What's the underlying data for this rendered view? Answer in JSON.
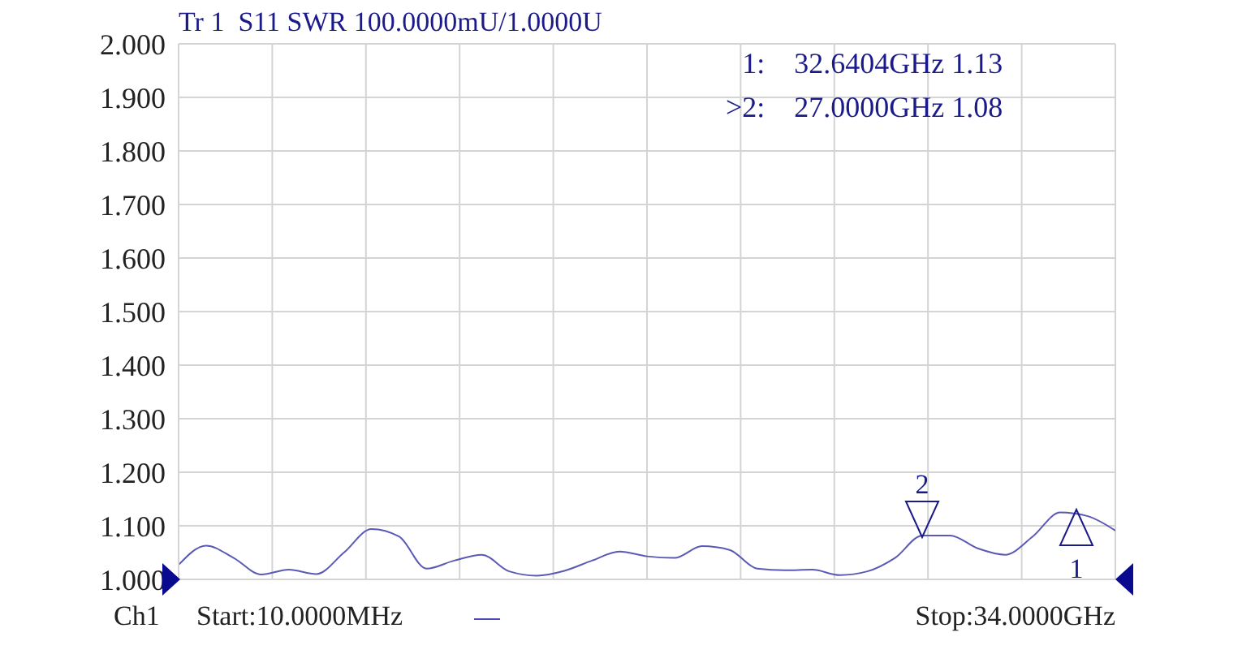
{
  "chart_data": {
    "type": "line",
    "title": "Tr 1  S11 SWR 100.0000mU/1.0000U",
    "categories": [
      null,
      null,
      null,
      null,
      null,
      null,
      null,
      null,
      null,
      null,
      null,
      null,
      null,
      null,
      null,
      null,
      null,
      null,
      null,
      null,
      null,
      null,
      null,
      null,
      null,
      null,
      null,
      null,
      null,
      null,
      null,
      null,
      null,
      null,
      null
    ],
    "series": [
      {
        "color": "#5a5ab4",
        "values": [
          1.027,
          1.063,
          1.04,
          1.009,
          1.018,
          1.01,
          1.05,
          1.094,
          1.08,
          1.02,
          1.035,
          1.046,
          1.015,
          1.007,
          1.016,
          1.035,
          1.052,
          1.043,
          1.04,
          1.062,
          1.055,
          1.02,
          1.017,
          1.018,
          1.008,
          1.015,
          1.04,
          1.082,
          1.082,
          1.058,
          1.046,
          1.08,
          1.125,
          1.118,
          1.091
        ]
      }
    ],
    "ylim": [
      1.0,
      2.0
    ],
    "yticks": [
      {
        "value": 1.0,
        "label": "1.000"
      },
      {
        "value": 1.1,
        "label": "1.100"
      },
      {
        "value": 1.2,
        "label": "1.200"
      },
      {
        "value": 1.3,
        "label": "1.300"
      },
      {
        "value": 1.4,
        "label": "1.400"
      },
      {
        "value": 1.5,
        "label": "1.500"
      },
      {
        "value": 1.6,
        "label": "1.600"
      },
      {
        "value": 1.7,
        "label": "1.700"
      },
      {
        "value": 1.8,
        "label": "1.800"
      },
      {
        "value": 1.9,
        "label": "1.900"
      },
      {
        "value": 2.0,
        "label": "2.000"
      }
    ],
    "grid": true,
    "marker": "none",
    "line_style": "solid",
    "annotations": [
      "1:    32.6404GHz 1.13",
      ">2:    27.0000GHz 1.08",
      "Ch1",
      "Start:10.0000MHz",
      "Stop:34.0000GHz",
      "1",
      "2"
    ]
  }
}
